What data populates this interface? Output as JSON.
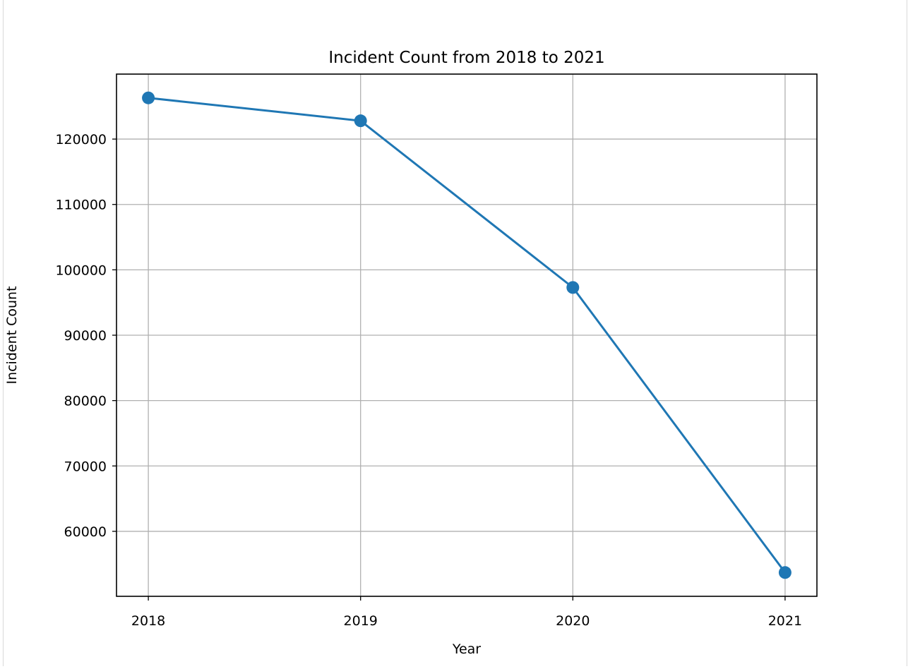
{
  "chart_data": {
    "type": "line",
    "title": "Incident Count from 2018 to 2021",
    "xlabel": "Year",
    "ylabel": "Incident Count",
    "x": [
      2018,
      2019,
      2020,
      2021
    ],
    "x_tick_labels": [
      "2018",
      "2019",
      "2020",
      "2021"
    ],
    "series": [
      {
        "values": [
          126300,
          122800,
          97300,
          53700
        ],
        "color": "#1f77b4",
        "marker": "circle"
      }
    ],
    "y_ticks": [
      60000,
      70000,
      80000,
      90000,
      100000,
      110000,
      120000
    ],
    "y_tick_labels": [
      "60000",
      "70000",
      "80000",
      "90000",
      "100000",
      "110000",
      "120000"
    ],
    "xlim": [
      2017.85,
      2021.15
    ],
    "ylim": [
      50060,
      129940
    ],
    "grid": true,
    "grid_color": "#b0b0b0"
  }
}
